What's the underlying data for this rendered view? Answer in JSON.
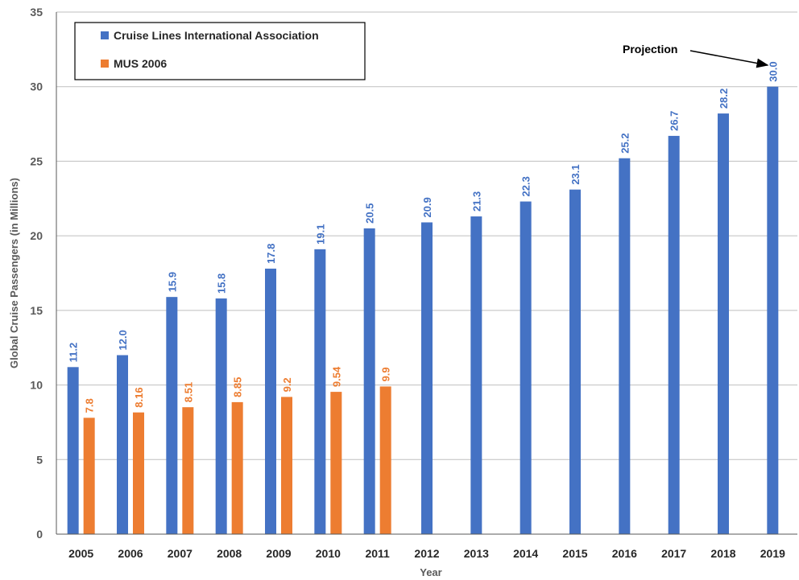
{
  "chart_data": {
    "type": "bar",
    "title": "",
    "xlabel": "Year",
    "ylabel": "Global Cruise Passengers (in Millions)",
    "ylim": [
      0,
      35
    ],
    "yticks": [
      0,
      5,
      10,
      15,
      20,
      25,
      30,
      35
    ],
    "grid": true,
    "legend": "top-left",
    "categories": [
      "2005",
      "2006",
      "2007",
      "2008",
      "2009",
      "2010",
      "2011",
      "2012",
      "2013",
      "2014",
      "2015",
      "2016",
      "2017",
      "2018",
      "2019"
    ],
    "series": [
      {
        "name": "Cruise Lines International Association",
        "color": "#4472C4",
        "values": [
          11.2,
          12.0,
          15.9,
          15.8,
          17.8,
          19.1,
          20.5,
          20.9,
          21.3,
          22.3,
          23.1,
          25.2,
          26.7,
          28.2,
          30.0
        ],
        "labels": [
          "11.2",
          "12.0",
          "15.9",
          "15.8",
          "17.8",
          "19.1",
          "20.5",
          "20.9",
          "21.3",
          "22.3",
          "23.1",
          "25.2",
          "26.7",
          "28.2",
          "30.0"
        ]
      },
      {
        "name": "MUS 2006",
        "color": "#ED7D31",
        "values": [
          7.8,
          8.16,
          8.51,
          8.85,
          9.2,
          9.54,
          9.9,
          null,
          null,
          null,
          null,
          null,
          null,
          null,
          null
        ],
        "labels": [
          "7.8",
          "8.16",
          "8.51",
          "8.85",
          "9.2",
          "9.54",
          "9.9",
          "",
          "",
          "",
          "",
          "",
          "",
          "",
          ""
        ]
      }
    ],
    "annotations": [
      {
        "text": "Projection",
        "points_to": "2019"
      }
    ]
  }
}
